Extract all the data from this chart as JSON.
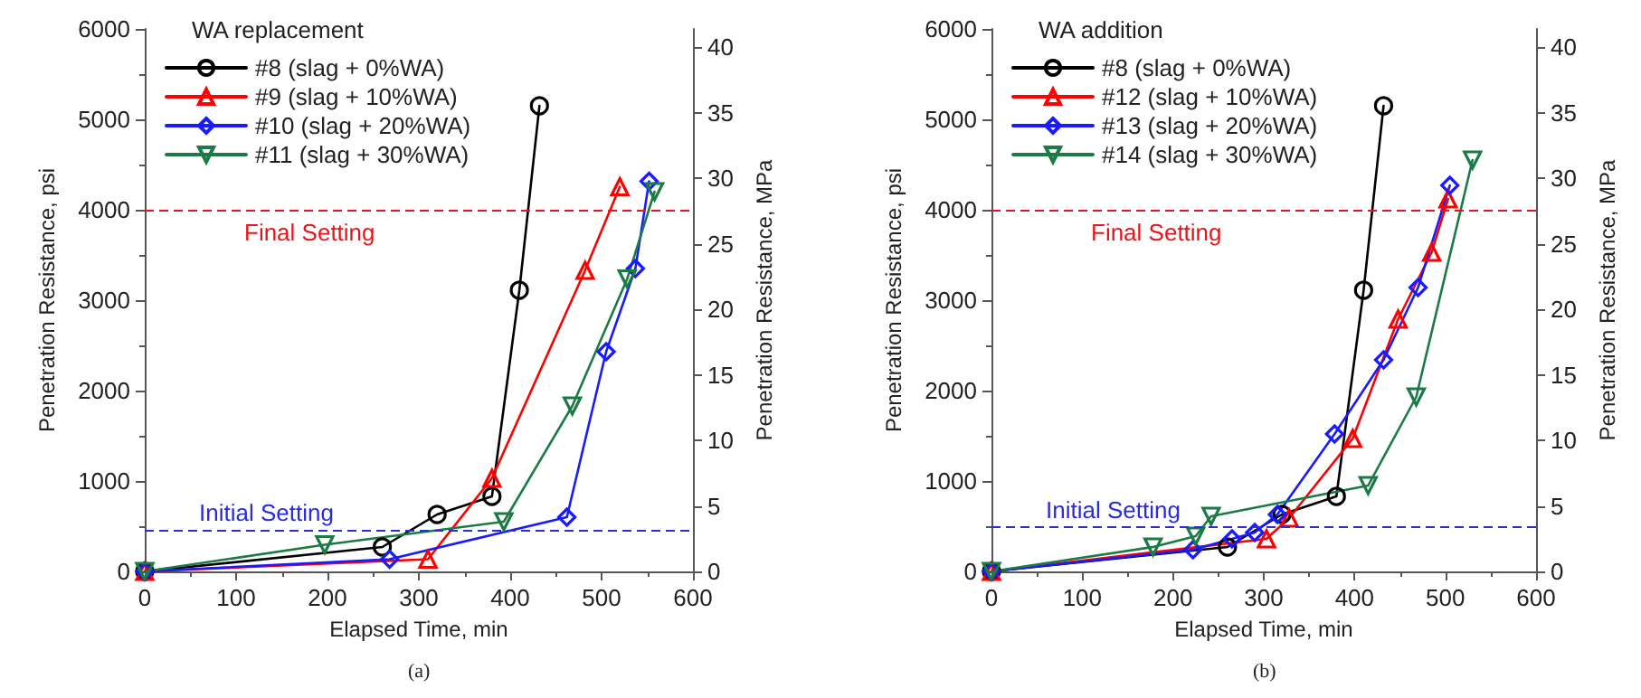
{
  "chart_data": [
    {
      "type": "line",
      "legend_title": "WA replacement",
      "xlabel": "Elapsed Time, min",
      "ylabel": "Penetration Resistance, psi",
      "y2label": "Penetration Resistance, MPa",
      "xlim": [
        0,
        600
      ],
      "xticks": [
        0,
        100,
        200,
        300,
        400,
        500,
        600
      ],
      "ylim": [
        0,
        6000
      ],
      "yticks": [
        0,
        1000,
        2000,
        3000,
        4000,
        5000,
        6000
      ],
      "y2lim": [
        0,
        41.4
      ],
      "y2ticks": [
        0,
        5,
        10,
        15,
        20,
        25,
        30,
        35,
        40
      ],
      "grid": false,
      "legend": "top left",
      "line_style": "solid",
      "annotations": [
        "(a)"
      ],
      "ref_lines": [
        {
          "axis": "y",
          "value": 4000,
          "label": "Final Setting",
          "color": "#e8141a",
          "line_style": "dashed"
        },
        {
          "axis": "y",
          "value": 460,
          "label": "Initial Setting",
          "color": "#2a2ae0",
          "line_style": "dashed"
        }
      ],
      "series": [
        {
          "name": "#8 (slag + 0%WA)",
          "color": "#000000",
          "marker": "circle",
          "x": [
            0,
            260,
            320,
            380,
            410,
            432
          ],
          "values": [
            0,
            270,
            630,
            830,
            3110,
            5150
          ]
        },
        {
          "name": "#9 (slag + 10%WA)",
          "color": "#ff0000",
          "marker": "triangle",
          "x": [
            0,
            310,
            380,
            482,
            520
          ],
          "values": [
            0,
            135,
            1030,
            3330,
            4255
          ]
        },
        {
          "name": "#10 (slag + 20%WA)",
          "color": "#1a1aff",
          "marker": "diamond",
          "x": [
            0,
            268,
            462,
            505,
            537,
            552
          ],
          "values": [
            0,
            135,
            600,
            2430,
            3350,
            4315
          ]
        },
        {
          "name": "#11 (slag + 30%WA)",
          "color": "#1b7a45",
          "marker": "triangle-down",
          "x": [
            0,
            197,
            393,
            468,
            528,
            558
          ],
          "values": [
            0,
            295,
            550,
            1830,
            3235,
            4200
          ]
        }
      ]
    },
    {
      "type": "line",
      "legend_title": "WA addition",
      "xlabel": "Elapsed Time, min",
      "ylabel": "Penetration Resistance, psi",
      "y2label": "Penetration Resistance, MPa",
      "xlim": [
        0,
        600
      ],
      "xticks": [
        0,
        100,
        200,
        300,
        400,
        500,
        600
      ],
      "ylim": [
        0,
        6000
      ],
      "yticks": [
        0,
        1000,
        2000,
        3000,
        4000,
        5000,
        6000
      ],
      "y2lim": [
        0,
        41.4
      ],
      "y2ticks": [
        0,
        5,
        10,
        15,
        20,
        25,
        30,
        35,
        40
      ],
      "grid": false,
      "legend": "top left",
      "line_style": "solid",
      "annotations": [
        "(b)"
      ],
      "ref_lines": [
        {
          "axis": "y",
          "value": 4000,
          "label": "Final Setting",
          "color": "#e8141a",
          "line_style": "dashed"
        },
        {
          "axis": "y",
          "value": 490,
          "label": "Initial Setting",
          "color": "#2a2ae0",
          "line_style": "dashed"
        }
      ],
      "series": [
        {
          "name": "#8 (slag + 0%WA)",
          "color": "#000000",
          "marker": "circle",
          "x": [
            0,
            260,
            320,
            380,
            410,
            432
          ],
          "values": [
            0,
            270,
            630,
            830,
            3110,
            5150
          ]
        },
        {
          "name": "#12 (slag + 10%WA)",
          "color": "#ff0000",
          "marker": "triangle",
          "x": [
            0,
            303,
            328,
            398,
            448,
            485,
            503
          ],
          "values": [
            0,
            360,
            590,
            1470,
            2790,
            3530,
            4120
          ]
        },
        {
          "name": "#13 (slag + 20%WA)",
          "color": "#1a1aff",
          "marker": "diamond",
          "x": [
            0,
            222,
            265,
            290,
            315,
            378,
            432,
            470,
            505
          ],
          "values": [
            0,
            240,
            360,
            430,
            630,
            1520,
            2340,
            3140,
            4270
          ]
        },
        {
          "name": "#14 (slag + 30%WA)",
          "color": "#1b7a45",
          "marker": "triangle-down",
          "x": [
            0,
            178,
            225,
            242,
            415,
            468,
            530
          ],
          "values": [
            0,
            270,
            390,
            610,
            950,
            1930,
            4550
          ]
        }
      ]
    }
  ]
}
